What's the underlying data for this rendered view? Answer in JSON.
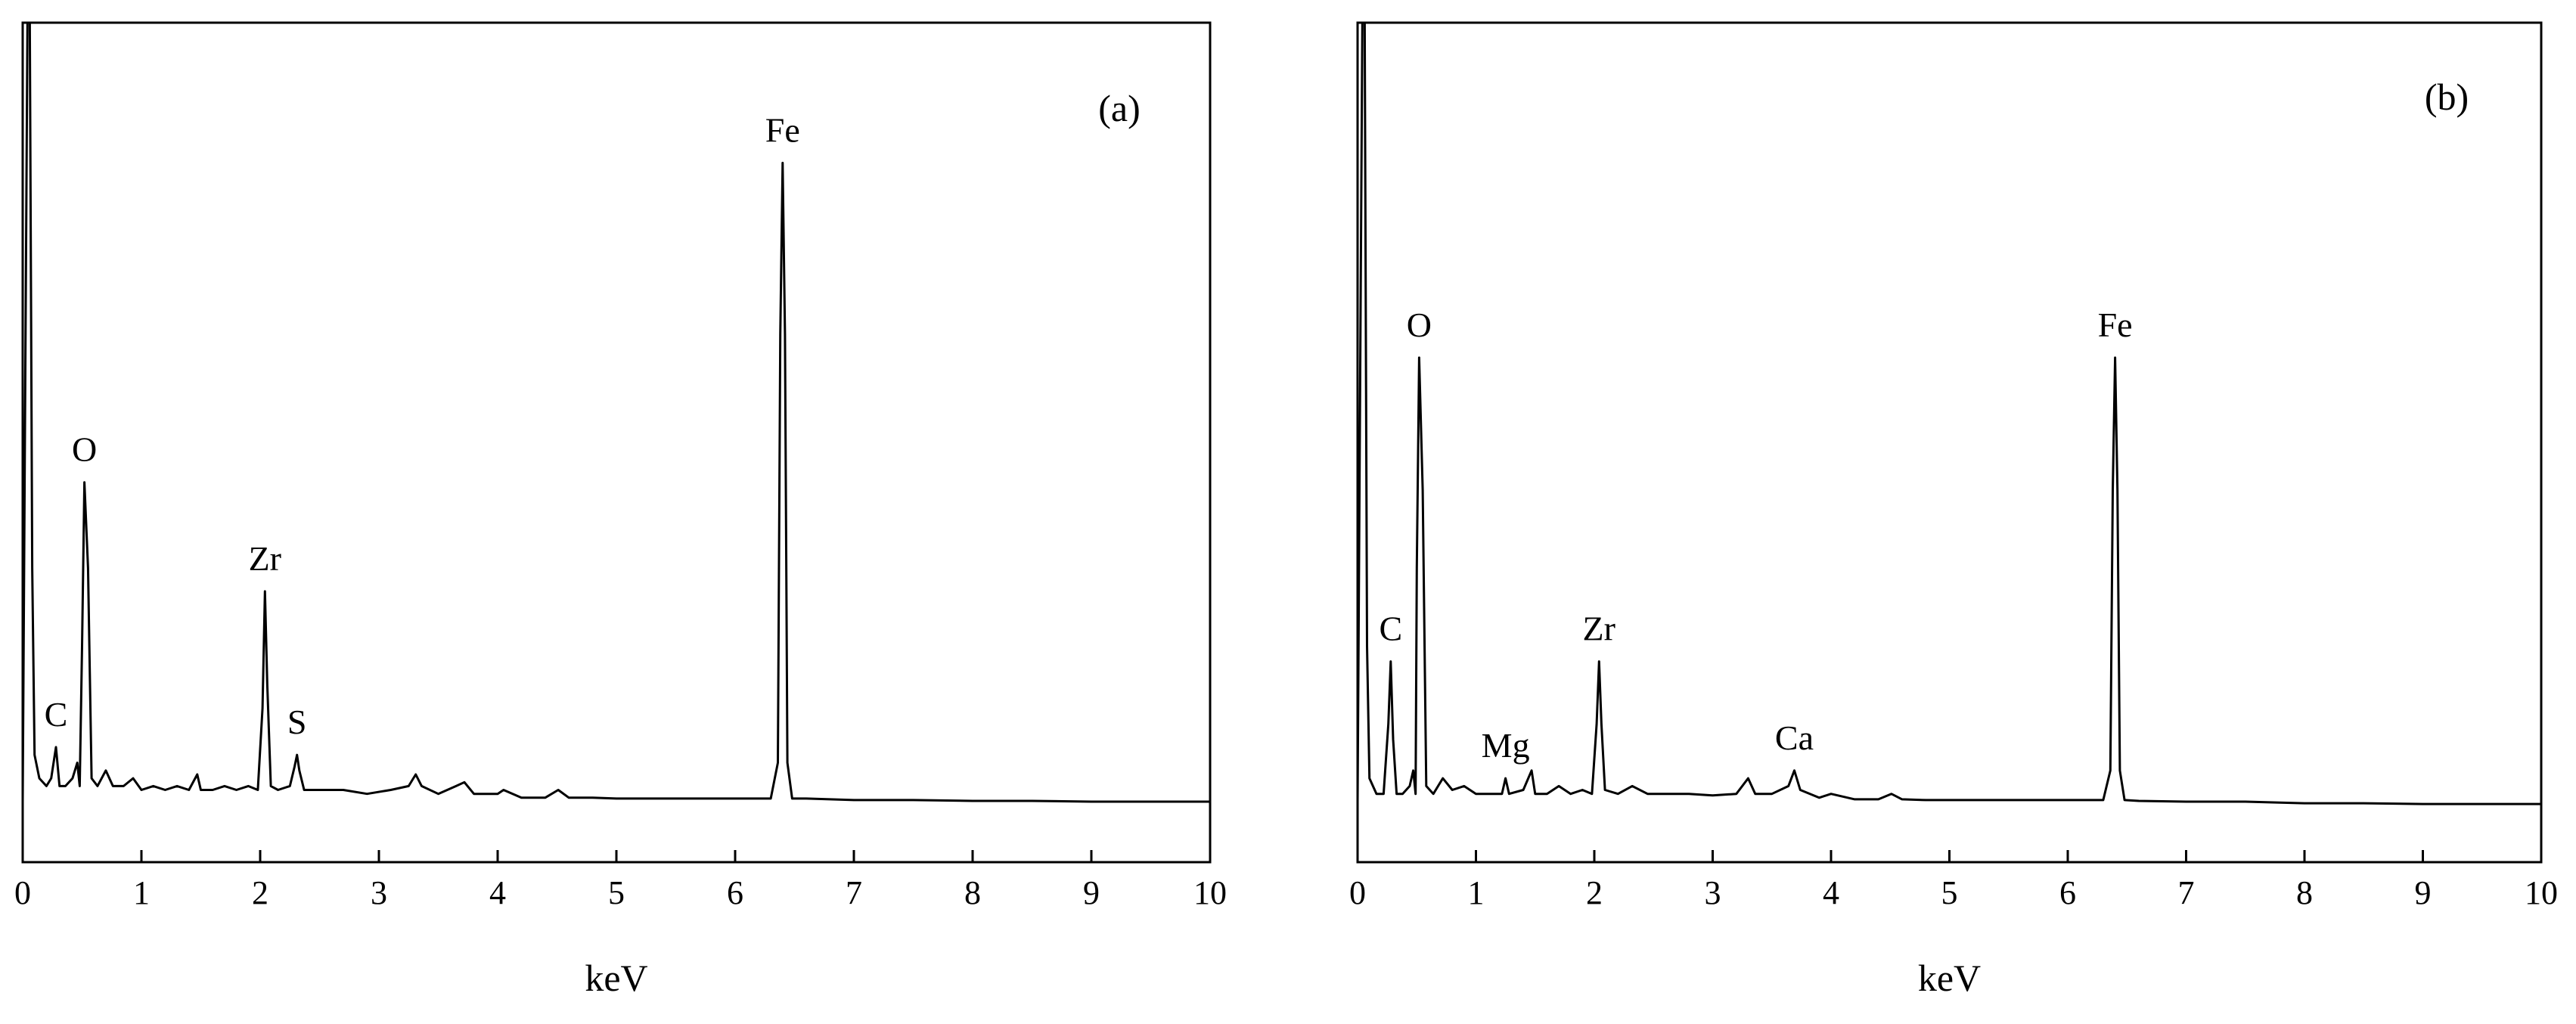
{
  "chart_data": [
    {
      "type": "line",
      "panel_label": "(a)",
      "xlabel": "keV",
      "ylabel": "",
      "xlim": [
        0,
        10
      ],
      "ylim": [
        0,
        1
      ],
      "x_ticks": [
        "0",
        "1",
        "2",
        "3",
        "4",
        "5",
        "6",
        "7",
        "8",
        "9",
        "10"
      ],
      "y_ticks_labeled": false,
      "grid": false,
      "peaks": [
        {
          "label": "C",
          "x": 0.28,
          "y": 0.07
        },
        {
          "label": "O",
          "x": 0.52,
          "y": 0.41
        },
        {
          "label": "Zr",
          "x": 2.04,
          "y": 0.27
        },
        {
          "label": "S",
          "x": 2.31,
          "y": 0.06
        },
        {
          "label": "Fe",
          "x": 6.4,
          "y": 0.82
        }
      ],
      "series": [
        {
          "color": "#000000",
          "points": [
            [
              0.0,
              0.0
            ],
            [
              0.04,
              1.0
            ],
            [
              0.06,
              1.0
            ],
            [
              0.08,
              0.3
            ],
            [
              0.1,
              0.06
            ],
            [
              0.14,
              0.03
            ],
            [
              0.2,
              0.02
            ],
            [
              0.24,
              0.03
            ],
            [
              0.28,
              0.07
            ],
            [
              0.31,
              0.02
            ],
            [
              0.36,
              0.02
            ],
            [
              0.42,
              0.03
            ],
            [
              0.46,
              0.05
            ],
            [
              0.48,
              0.02
            ],
            [
              0.5,
              0.2
            ],
            [
              0.52,
              0.41
            ],
            [
              0.55,
              0.3
            ],
            [
              0.58,
              0.03
            ],
            [
              0.63,
              0.02
            ],
            [
              0.7,
              0.04
            ],
            [
              0.76,
              0.02
            ],
            [
              0.85,
              0.02
            ],
            [
              0.93,
              0.03
            ],
            [
              1.0,
              0.015
            ],
            [
              1.1,
              0.02
            ],
            [
              1.2,
              0.015
            ],
            [
              1.3,
              0.02
            ],
            [
              1.4,
              0.015
            ],
            [
              1.47,
              0.035
            ],
            [
              1.5,
              0.015
            ],
            [
              1.6,
              0.015
            ],
            [
              1.7,
              0.02
            ],
            [
              1.8,
              0.015
            ],
            [
              1.9,
              0.02
            ],
            [
              1.98,
              0.015
            ],
            [
              2.02,
              0.12
            ],
            [
              2.04,
              0.27
            ],
            [
              2.06,
              0.15
            ],
            [
              2.09,
              0.02
            ],
            [
              2.15,
              0.015
            ],
            [
              2.25,
              0.02
            ],
            [
              2.29,
              0.045
            ],
            [
              2.31,
              0.06
            ],
            [
              2.33,
              0.04
            ],
            [
              2.37,
              0.015
            ],
            [
              2.5,
              0.015
            ],
            [
              2.7,
              0.015
            ],
            [
              2.9,
              0.01
            ],
            [
              3.1,
              0.015
            ],
            [
              3.25,
              0.02
            ],
            [
              3.31,
              0.035
            ],
            [
              3.36,
              0.02
            ],
            [
              3.5,
              0.01
            ],
            [
              3.65,
              0.02
            ],
            [
              3.72,
              0.025
            ],
            [
              3.8,
              0.01
            ],
            [
              4.0,
              0.01
            ],
            [
              4.05,
              0.015
            ],
            [
              4.2,
              0.005
            ],
            [
              4.4,
              0.005
            ],
            [
              4.51,
              0.015
            ],
            [
              4.6,
              0.005
            ],
            [
              4.8,
              0.005
            ],
            [
              5.0,
              0.004
            ],
            [
              5.5,
              0.004
            ],
            [
              6.0,
              0.004
            ],
            [
              6.3,
              0.004
            ],
            [
              6.36,
              0.05
            ],
            [
              6.38,
              0.6
            ],
            [
              6.4,
              0.82
            ],
            [
              6.42,
              0.6
            ],
            [
              6.44,
              0.05
            ],
            [
              6.48,
              0.004
            ],
            [
              6.6,
              0.004
            ],
            [
              7.0,
              0.002
            ],
            [
              7.5,
              0.002
            ],
            [
              8.0,
              0.001
            ],
            [
              8.5,
              0.001
            ],
            [
              9.0,
              0.0
            ],
            [
              9.5,
              0.0
            ],
            [
              10.0,
              0.0
            ]
          ]
        }
      ]
    },
    {
      "type": "line",
      "panel_label": "(b)",
      "xlabel": "keV",
      "ylabel": "",
      "xlim": [
        0,
        10
      ],
      "ylim": [
        0,
        1
      ],
      "x_ticks": [
        "0",
        "1",
        "2",
        "3",
        "4",
        "5",
        "6",
        "7",
        "8",
        "9",
        "10"
      ],
      "y_ticks_labeled": false,
      "grid": false,
      "peaks": [
        {
          "label": "C",
          "x": 0.28,
          "y": 0.18
        },
        {
          "label": "O",
          "x": 0.52,
          "y": 0.57
        },
        {
          "label": "Mg",
          "x": 1.25,
          "y": 0.03
        },
        {
          "label": "Zr",
          "x": 2.04,
          "y": 0.18
        },
        {
          "label": "Ca",
          "x": 3.69,
          "y": 0.04
        },
        {
          "label": "Fe",
          "x": 6.4,
          "y": 0.57
        }
      ],
      "series": [
        {
          "color": "#000000",
          "points": [
            [
              0.0,
              0.0
            ],
            [
              0.04,
              1.0
            ],
            [
              0.06,
              1.0
            ],
            [
              0.08,
              0.2
            ],
            [
              0.1,
              0.03
            ],
            [
              0.16,
              0.01
            ],
            [
              0.22,
              0.01
            ],
            [
              0.26,
              0.1
            ],
            [
              0.28,
              0.18
            ],
            [
              0.3,
              0.08
            ],
            [
              0.33,
              0.01
            ],
            [
              0.38,
              0.01
            ],
            [
              0.44,
              0.02
            ],
            [
              0.47,
              0.04
            ],
            [
              0.49,
              0.01
            ],
            [
              0.5,
              0.3
            ],
            [
              0.52,
              0.57
            ],
            [
              0.55,
              0.4
            ],
            [
              0.58,
              0.02
            ],
            [
              0.64,
              0.01
            ],
            [
              0.72,
              0.03
            ],
            [
              0.8,
              0.015
            ],
            [
              0.9,
              0.02
            ],
            [
              1.0,
              0.01
            ],
            [
              1.1,
              0.01
            ],
            [
              1.22,
              0.01
            ],
            [
              1.25,
              0.03
            ],
            [
              1.28,
              0.01
            ],
            [
              1.4,
              0.015
            ],
            [
              1.47,
              0.04
            ],
            [
              1.5,
              0.01
            ],
            [
              1.6,
              0.01
            ],
            [
              1.7,
              0.02
            ],
            [
              1.8,
              0.01
            ],
            [
              1.9,
              0.015
            ],
            [
              1.98,
              0.01
            ],
            [
              2.02,
              0.1
            ],
            [
              2.04,
              0.18
            ],
            [
              2.06,
              0.1
            ],
            [
              2.09,
              0.015
            ],
            [
              2.2,
              0.01
            ],
            [
              2.32,
              0.02
            ],
            [
              2.45,
              0.01
            ],
            [
              2.6,
              0.01
            ],
            [
              2.8,
              0.01
            ],
            [
              3.0,
              0.008
            ],
            [
              3.2,
              0.01
            ],
            [
              3.3,
              0.03
            ],
            [
              3.36,
              0.01
            ],
            [
              3.5,
              0.01
            ],
            [
              3.64,
              0.02
            ],
            [
              3.69,
              0.04
            ],
            [
              3.74,
              0.015
            ],
            [
              3.9,
              0.005
            ],
            [
              4.0,
              0.01
            ],
            [
              4.2,
              0.003
            ],
            [
              4.4,
              0.003
            ],
            [
              4.51,
              0.01
            ],
            [
              4.6,
              0.003
            ],
            [
              4.8,
              0.002
            ],
            [
              5.0,
              0.002
            ],
            [
              5.5,
              0.002
            ],
            [
              6.0,
              0.002
            ],
            [
              6.3,
              0.002
            ],
            [
              6.36,
              0.04
            ],
            [
              6.38,
              0.4
            ],
            [
              6.4,
              0.57
            ],
            [
              6.42,
              0.4
            ],
            [
              6.44,
              0.04
            ],
            [
              6.48,
              0.002
            ],
            [
              6.6,
              0.001
            ],
            [
              7.0,
              0.0
            ],
            [
              7.5,
              0.0
            ],
            [
              8.0,
              -0.002
            ],
            [
              8.5,
              -0.002
            ],
            [
              9.0,
              -0.003
            ],
            [
              9.5,
              -0.003
            ],
            [
              10.0,
              -0.003
            ]
          ]
        }
      ]
    }
  ]
}
